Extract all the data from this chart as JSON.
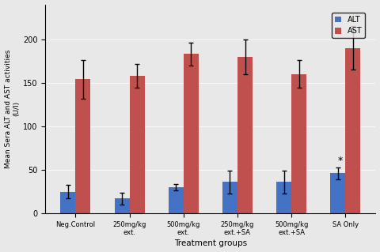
{
  "categories": [
    "Neg.Control",
    "250mg/kg\next.",
    "500mg/kg\next.",
    "250mg/kg\next.+SA",
    "500mg/kg\next.+SA",
    "SA Only"
  ],
  "alt_values": [
    25,
    17,
    30,
    36,
    36,
    46
  ],
  "ast_values": [
    154,
    158,
    183,
    180,
    160,
    190
  ],
  "alt_errors": [
    8,
    7,
    4,
    13,
    13,
    7
  ],
  "ast_errors": [
    22,
    14,
    13,
    20,
    16,
    25
  ],
  "alt_color": "#4472C4",
  "ast_color": "#C0504D",
  "ylabel": "Mean Sera ALT and AST activities\n(U/I)",
  "xlabel": "Treatment groups",
  "ylim": [
    0,
    240
  ],
  "yticks": [
    0,
    50,
    100,
    150,
    200
  ],
  "legend_labels": [
    "ALT",
    "AST"
  ],
  "star_annotation": "*",
  "star_group_index": 5,
  "bar_width": 0.28,
  "bg_color": "#E8E8E8"
}
